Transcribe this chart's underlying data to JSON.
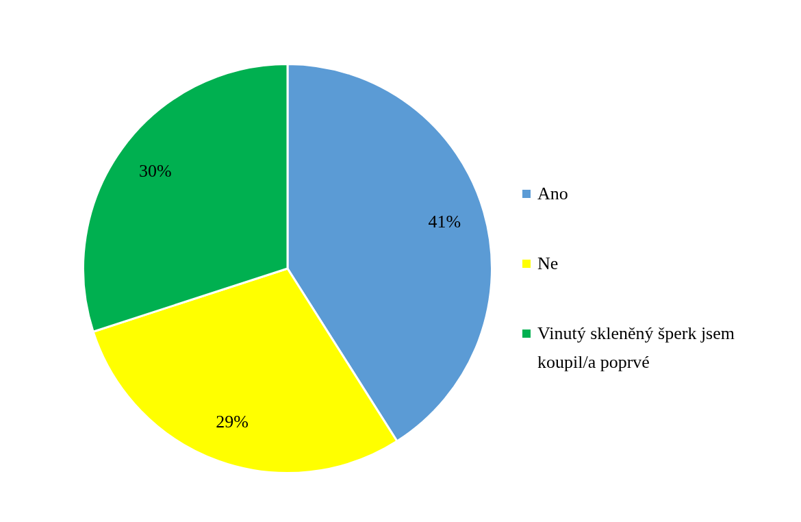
{
  "chart_data": {
    "type": "pie",
    "categories": [
      "Ano",
      "Ne",
      "Vinutý skleněný šperk jsem koupil/a poprvé"
    ],
    "values": [
      41,
      29,
      30
    ],
    "colors": [
      "#5b9bd5",
      "#ffff00",
      "#00b050"
    ],
    "value_labels": [
      "41%",
      "29%",
      "30%"
    ],
    "legend": "right"
  }
}
